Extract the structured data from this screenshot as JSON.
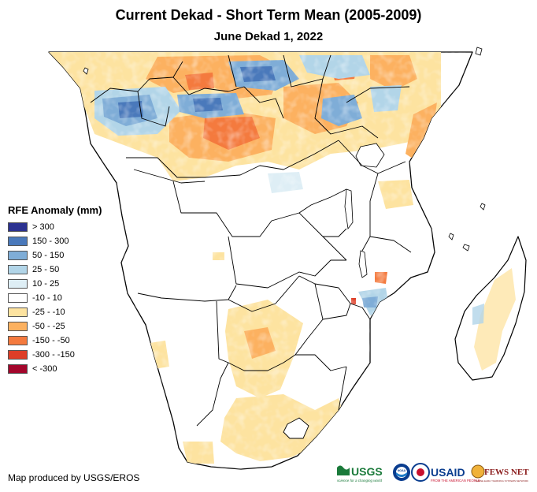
{
  "title": "Current Dekad - Short Term Mean (2005-2009)",
  "subtitle": "June Dekad 1, 2022",
  "legend": {
    "title": "RFE Anomaly (mm)",
    "items": [
      {
        "label": "> 300",
        "color": "#2b3190"
      },
      {
        "label": "150 - 300",
        "color": "#4a79bb"
      },
      {
        "label": "50 - 150",
        "color": "#7fadd7"
      },
      {
        "label": "25 - 50",
        "color": "#b2d5e8"
      },
      {
        "label": "10 - 25",
        "color": "#deeef5"
      },
      {
        "label": "-10 - 10",
        "color": "#ffffff"
      },
      {
        "label": "-25 - -10",
        "color": "#fde3a0"
      },
      {
        "label": "-50 - -25",
        "color": "#fcb160"
      },
      {
        "label": "-150 - -50",
        "color": "#f47a3e"
      },
      {
        "label": "-300 - -150",
        "color": "#de3e27"
      },
      {
        "label": "< -300",
        "color": "#a3062b"
      }
    ]
  },
  "credit": "Map produced by USGS/EROS",
  "logos": {
    "usgs": "USGS",
    "usgs_tagline": "science for a changing world",
    "noaa": "NOAA",
    "usaid": "USAID",
    "usaid_tagline": "FROM THE AMERICAN PEOPLE",
    "fewsnet": "FEWS NET",
    "fewsnet_tagline": "FAMINE EARLY WARNING SYSTEMS NETWORK"
  }
}
